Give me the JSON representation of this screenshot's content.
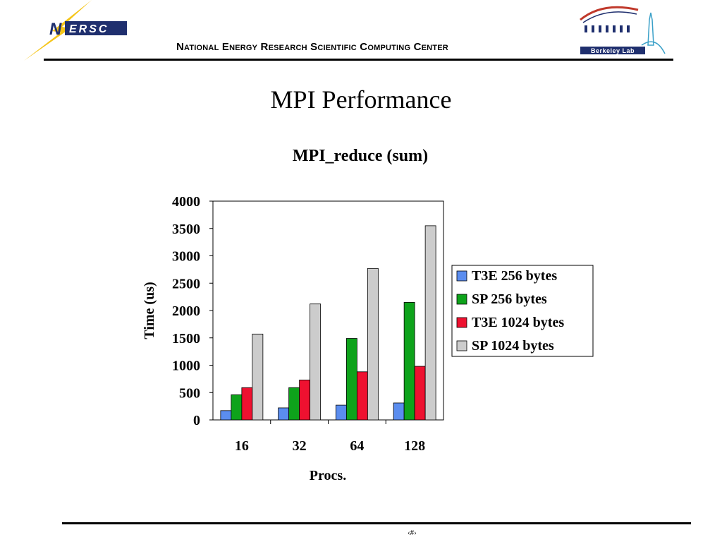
{
  "header": {
    "org_name": "National Energy Research Scientific Computing Center",
    "logo_left_text": "ERSC",
    "logo_left_letter": "N",
    "logo_right_text": "Berkeley Lab"
  },
  "slide": {
    "title": "MPI Performance",
    "page_number": "‹#›"
  },
  "colors": {
    "logo_yellow": "#f5c518",
    "logo_navy": "#1f2f6e",
    "t3e_256": "#5b8def",
    "sp_256": "#0ea31b",
    "t3e_1024": "#ee1130",
    "sp_1024": "#cccccc"
  },
  "chart_data": {
    "type": "bar",
    "title": "MPI_reduce (sum)",
    "xlabel": "Procs.",
    "ylabel": "Time (us)",
    "categories": [
      "16",
      "32",
      "64",
      "128"
    ],
    "ylim": [
      0,
      4000
    ],
    "yticks": [
      0,
      500,
      1000,
      1500,
      2000,
      2500,
      3000,
      3500,
      4000
    ],
    "grid": false,
    "legend_position": "right",
    "series": [
      {
        "name": "T3E 256 bytes",
        "color": "#5b8def",
        "values": [
          170,
          220,
          270,
          310
        ]
      },
      {
        "name": "SP 256 bytes",
        "color": "#0ea31b",
        "values": [
          460,
          590,
          1490,
          2150
        ]
      },
      {
        "name": "T3E 1024 bytes",
        "color": "#ee1130",
        "values": [
          590,
          730,
          880,
          980
        ]
      },
      {
        "name": "SP 1024 bytes",
        "color": "#cccccc",
        "values": [
          1570,
          2120,
          2770,
          3550
        ]
      }
    ]
  }
}
